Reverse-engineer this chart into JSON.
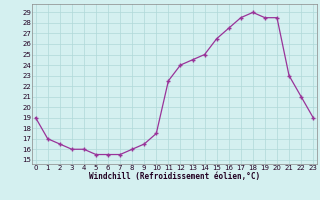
{
  "x": [
    0,
    1,
    2,
    3,
    4,
    5,
    6,
    7,
    8,
    9,
    10,
    11,
    12,
    13,
    14,
    15,
    16,
    17,
    18,
    19,
    20,
    21,
    22,
    23
  ],
  "y": [
    19,
    17,
    16.5,
    16,
    16,
    15.5,
    15.5,
    15.5,
    16,
    16.5,
    17.5,
    22.5,
    24,
    24.5,
    25,
    26.5,
    27.5,
    28.5,
    29,
    28.5,
    28.5,
    23,
    21,
    19
  ],
  "title": "Windchill (Refroidissement éolien,°C)",
  "yticks": [
    15,
    16,
    17,
    18,
    19,
    20,
    21,
    22,
    23,
    24,
    25,
    26,
    27,
    28,
    29
  ],
  "xticks": [
    0,
    1,
    2,
    3,
    4,
    5,
    6,
    7,
    8,
    9,
    10,
    11,
    12,
    13,
    14,
    15,
    16,
    17,
    18,
    19,
    20,
    21,
    22,
    23
  ],
  "line_color": "#993399",
  "marker": "+",
  "bg_color": "#d4f0f0",
  "grid_color": "#b0d8d8",
  "tick_color": "#220022",
  "label_color": "#220022",
  "tick_fontsize": 5.0,
  "xlabel_fontsize": 5.5
}
